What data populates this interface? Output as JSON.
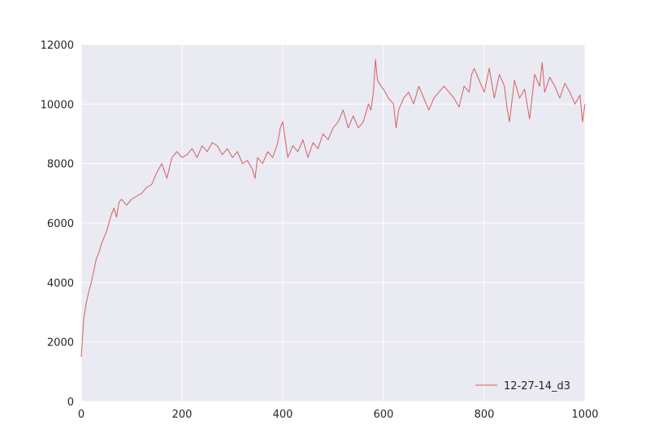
{
  "chart_data": {
    "type": "line",
    "title": "",
    "xlabel": "",
    "ylabel": "",
    "xlim": [
      0,
      1000
    ],
    "ylim": [
      0,
      12000
    ],
    "xticks": [
      0,
      200,
      400,
      600,
      800,
      1000
    ],
    "yticks": [
      0,
      2000,
      4000,
      6000,
      8000,
      10000,
      12000
    ],
    "grid": true,
    "legend_position": "lower-right",
    "colors": {
      "plot_background": "#eaeaf2",
      "grid": "#ffffff",
      "series": "#d65f5f"
    },
    "series": [
      {
        "name": "12-27-14_d3",
        "x": [
          0,
          5,
          10,
          15,
          20,
          25,
          30,
          35,
          40,
          45,
          50,
          55,
          60,
          65,
          70,
          75,
          80,
          90,
          100,
          110,
          120,
          130,
          140,
          150,
          160,
          170,
          180,
          190,
          200,
          210,
          220,
          230,
          240,
          250,
          260,
          270,
          280,
          290,
          300,
          310,
          320,
          330,
          340,
          345,
          350,
          360,
          370,
          380,
          390,
          395,
          400,
          405,
          410,
          420,
          430,
          440,
          450,
          460,
          470,
          480,
          490,
          500,
          510,
          520,
          530,
          540,
          550,
          560,
          570,
          575,
          580,
          584,
          588,
          595,
          600,
          610,
          620,
          625,
          630,
          640,
          650,
          660,
          670,
          680,
          690,
          700,
          710,
          720,
          730,
          740,
          750,
          760,
          770,
          775,
          780,
          790,
          800,
          810,
          820,
          830,
          840,
          845,
          850,
          860,
          870,
          880,
          890,
          900,
          910,
          915,
          920,
          930,
          940,
          950,
          960,
          970,
          980,
          990,
          995,
          1000
        ],
        "y": [
          1500,
          2800,
          3300,
          3700,
          4000,
          4400,
          4800,
          5000,
          5300,
          5500,
          5700,
          6000,
          6300,
          6500,
          6200,
          6700,
          6800,
          6600,
          6800,
          6900,
          7000,
          7200,
          7300,
          7700,
          8000,
          7500,
          8200,
          8400,
          8200,
          8300,
          8500,
          8200,
          8600,
          8400,
          8700,
          8600,
          8300,
          8500,
          8200,
          8400,
          8000,
          8100,
          7800,
          7500,
          8200,
          8000,
          8400,
          8200,
          8700,
          9200,
          9400,
          8800,
          8200,
          8600,
          8400,
          8800,
          8200,
          8700,
          8500,
          9000,
          8800,
          9200,
          9400,
          9800,
          9200,
          9600,
          9200,
          9400,
          10000,
          9800,
          10400,
          11500,
          10800,
          10600,
          10500,
          10200,
          10000,
          9200,
          9800,
          10200,
          10400,
          10000,
          10600,
          10200,
          9800,
          10200,
          10400,
          10600,
          10400,
          10200,
          9900,
          10600,
          10400,
          11000,
          11200,
          10800,
          10400,
          11200,
          10200,
          11000,
          10600,
          9900,
          9400,
          10800,
          10200,
          10500,
          9500,
          11000,
          10600,
          11400,
          10400,
          10900,
          10600,
          10200,
          10700,
          10400,
          10000,
          10300,
          9400,
          10000
        ]
      }
    ]
  }
}
